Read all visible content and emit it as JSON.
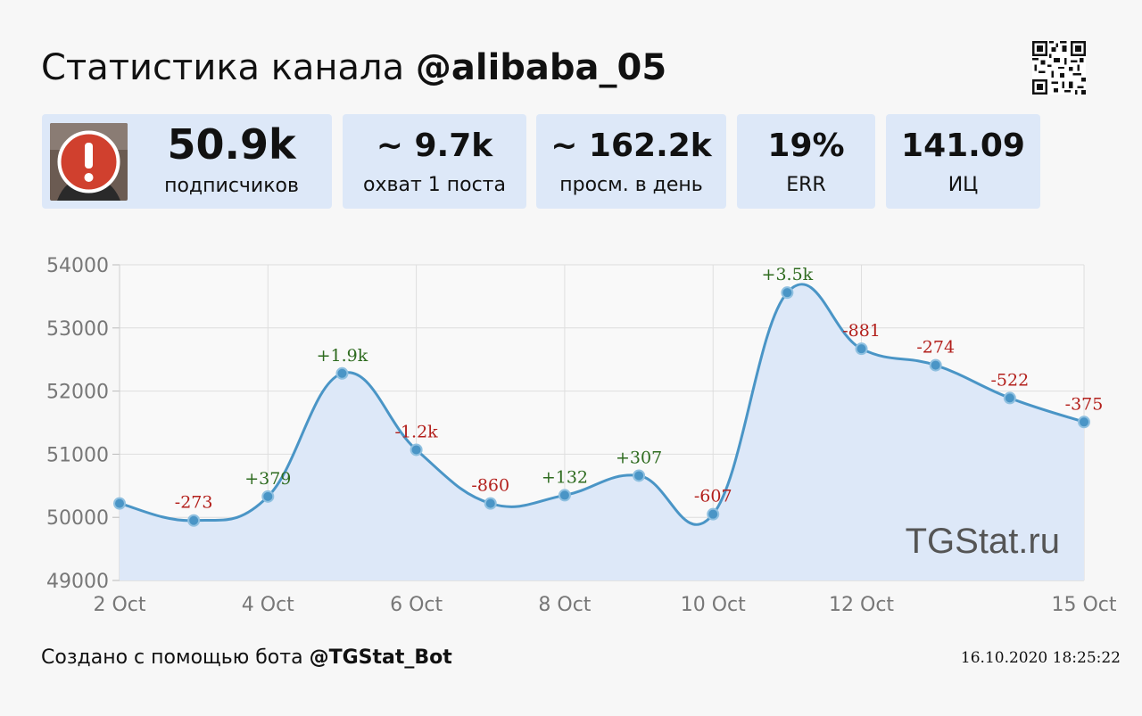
{
  "header": {
    "title_prefix": "Статистика канала",
    "channel": "@alibaba_05"
  },
  "qr_icon": "qr-code-icon",
  "avatar": {
    "badge_icon": "warning-exclamation-icon",
    "badge_color": "#d0402e"
  },
  "cards": [
    {
      "value": "50.9k",
      "label": "подписчиков"
    },
    {
      "value": "~ 9.7k",
      "label": "охват 1 поста"
    },
    {
      "value": "~ 162.2k",
      "label": "просм. в день"
    },
    {
      "value": "19%",
      "label": "ERR"
    },
    {
      "value": "141.09",
      "label": "ИЦ"
    }
  ],
  "chart_data": {
    "type": "area",
    "ylim": [
      49000,
      54000
    ],
    "yticks": [
      49000,
      50000,
      51000,
      52000,
      53000,
      54000
    ],
    "xticks": [
      "2 Oct",
      "4 Oct",
      "6 Oct",
      "8 Oct",
      "10 Oct",
      "12 Oct",
      "15 Oct"
    ],
    "x": [
      "2 Oct",
      "3 Oct",
      "4 Oct",
      "5 Oct",
      "6 Oct",
      "7 Oct",
      "8 Oct",
      "9 Oct",
      "10 Oct",
      "11 Oct",
      "12 Oct",
      "13 Oct",
      "14 Oct",
      "15 Oct"
    ],
    "values": [
      50220,
      49950,
      50330,
      52280,
      51070,
      50220,
      50350,
      50660,
      50050,
      53560,
      52670,
      52410,
      51890,
      51510
    ],
    "deltas": [
      "",
      "-273",
      "+379",
      "+1.9k",
      "-1.2k",
      "-860",
      "+132",
      "+307",
      "-607",
      "+3.5k",
      "-881",
      "-274",
      "-522",
      "-375"
    ],
    "grid": true,
    "watermark": "TGStat.ru",
    "colors": {
      "line": "#4a95c6",
      "fill": "#dde8f8",
      "positive": "#2e6b1f",
      "negative": "#b3201c"
    }
  },
  "footer": {
    "prefix": "Создано с помощью бота",
    "bot": "@TGStat_Bot",
    "timestamp": "16.10.2020 18:25:22"
  }
}
